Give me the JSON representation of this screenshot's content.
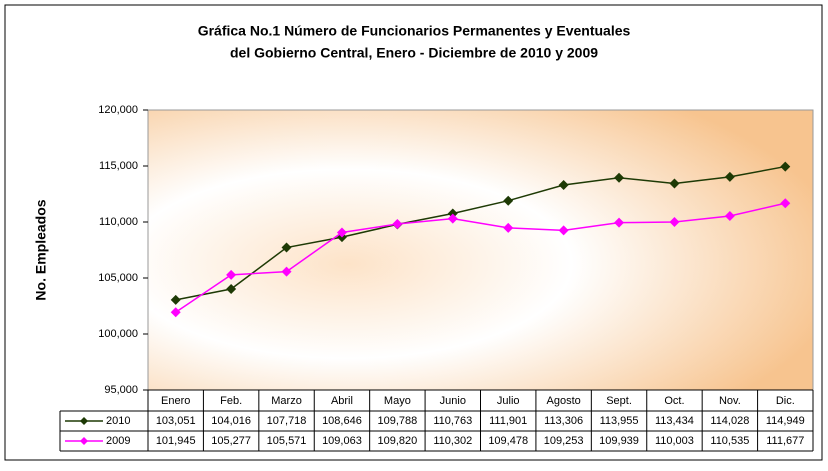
{
  "chart_data": {
    "type": "line",
    "title": [
      "Gráfica No.1  Número de Funcionarios Permanentes y Eventuales",
      "del Gobierno Central, Enero - Diciembre de 2010 y 2009"
    ],
    "ylabel": "No. Empleados",
    "categories": [
      "Enero",
      "Feb.",
      "Marzo",
      "Abril",
      "Mayo",
      "Junio",
      "Julio",
      "Agosto",
      "Sept.",
      "Oct.",
      "Nov.",
      "Dic."
    ],
    "series": [
      {
        "name": "2010",
        "color": "#1e3a05",
        "values": [
          103051,
          104016,
          107718,
          108646,
          109788,
          110763,
          111901,
          113306,
          113955,
          113434,
          114028,
          114949
        ],
        "value_labels": [
          "103,051",
          "104,016",
          "107,718",
          "108,646",
          "109,788",
          "110,763",
          "111,901",
          "113,306",
          "113,955",
          "113,434",
          "114,028",
          "114,949"
        ]
      },
      {
        "name": "2009",
        "color": "#ff00ff",
        "values": [
          101945,
          105277,
          105571,
          109063,
          109820,
          110302,
          109478,
          109253,
          109939,
          110003,
          110535,
          111677
        ],
        "value_labels": [
          "101,945",
          "105,277",
          "105,571",
          "109,063",
          "109,820",
          "110,302",
          "109,478",
          "109,253",
          "109,939",
          "110,003",
          "110,535",
          "111,677"
        ]
      }
    ],
    "ylim": [
      95000,
      120000
    ],
    "yticks": [
      {
        "value": 95000,
        "label": "95,000"
      },
      {
        "value": 100000,
        "label": "100,000"
      },
      {
        "value": 105000,
        "label": "105,000"
      },
      {
        "value": 110000,
        "label": "110,000"
      },
      {
        "value": 115000,
        "label": "115,000"
      },
      {
        "value": 120000,
        "label": "120,000"
      }
    ],
    "grid": false
  }
}
